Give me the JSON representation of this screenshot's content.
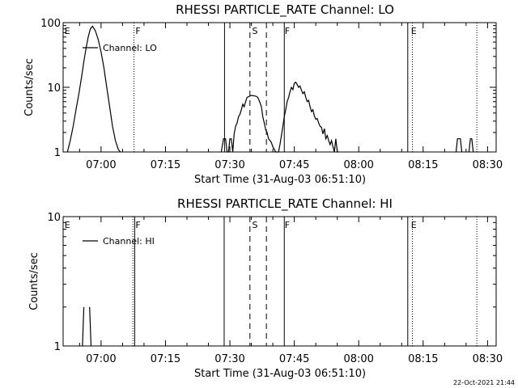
{
  "footer": {
    "timestamp": "22-Oct-2021 21:44"
  },
  "chart_data": [
    {
      "type": "line",
      "title": "RHESSI PARTICLE_RATE Channel: LO",
      "xlabel": "Start Time (31-Aug-03 06:51:10)",
      "ylabel": "Counts/sec",
      "yscale": "log",
      "xlim": [
        "06:51:10",
        "08:32:00"
      ],
      "ylim": [
        1,
        100
      ],
      "xticks": [
        "07:00",
        "07:15",
        "07:30",
        "07:45",
        "08:00",
        "08:15",
        "08:30"
      ],
      "yticks": [
        "1",
        "10",
        "100"
      ],
      "legend": {
        "position": "top-left",
        "entries": [
          "Channel: LO"
        ]
      },
      "region_labels": [
        {
          "label": "E",
          "time": "06:51:30"
        },
        {
          "label": "F",
          "time": "07:08:00"
        },
        {
          "label": "S",
          "time": "07:35:10"
        },
        {
          "label": "F",
          "time": "07:42:45"
        },
        {
          "label": "E",
          "time": "08:12:10"
        }
      ],
      "vlines": [
        {
          "time": "07:07:40",
          "style": "dotted"
        },
        {
          "time": "07:28:45",
          "style": "solid"
        },
        {
          "time": "07:34:40",
          "style": "dashed"
        },
        {
          "time": "07:38:30",
          "style": "dashed"
        },
        {
          "time": "07:42:40",
          "style": "solid"
        },
        {
          "time": "08:11:25",
          "style": "solid"
        },
        {
          "time": "08:12:30",
          "style": "dotted"
        },
        {
          "time": "08:27:30",
          "style": "dotted"
        }
      ],
      "series": [
        {
          "name": "Channel: LO",
          "x": [
            "06:52:10",
            "06:52:50",
            "06:53:30",
            "06:54:10",
            "06:54:50",
            "06:55:30",
            "06:56:00",
            "06:56:30",
            "06:57:00",
            "06:57:30",
            "06:58:00",
            "06:58:40",
            "06:59:20",
            "07:00:00",
            "07:00:40",
            "07:01:20",
            "07:02:00",
            "07:02:40",
            "07:03:20",
            "07:04:00",
            "07:04:30",
            "07:28:00",
            "07:28:30",
            "07:29:00",
            "07:29:20",
            "07:29:40",
            "07:30:00",
            "07:30:20",
            "07:30:40",
            "07:31:00",
            "07:31:20",
            "07:31:40",
            "07:32:00",
            "07:32:20",
            "07:32:40",
            "07:33:00",
            "07:33:20",
            "07:33:40",
            "07:34:00",
            "07:35:00",
            "07:36:00",
            "07:36:30",
            "07:37:00",
            "07:37:20",
            "07:37:40",
            "07:38:00",
            "07:38:20",
            "07:38:40",
            "07:39:00",
            "07:39:20",
            "07:39:40",
            "07:40:00",
            "07:40:20",
            "07:40:40",
            "07:41:20",
            "07:41:40",
            "07:42:00",
            "07:42:20",
            "07:42:40",
            "07:43:00",
            "07:43:20",
            "07:43:40",
            "07:44:00",
            "07:44:20",
            "07:44:40",
            "07:45:00",
            "07:45:20",
            "07:45:40",
            "07:46:00",
            "07:46:20",
            "07:46:40",
            "07:47:00",
            "07:47:20",
            "07:47:40",
            "07:48:00",
            "07:48:20",
            "07:48:40",
            "07:49:00",
            "07:49:20",
            "07:49:40",
            "07:50:00",
            "07:50:20",
            "07:50:40",
            "07:51:00",
            "07:51:20",
            "07:51:40",
            "07:52:00",
            "07:52:20",
            "07:52:40",
            "07:53:00",
            "07:53:20",
            "07:53:40",
            "07:54:00",
            "07:54:20",
            "07:54:40",
            "07:55:00",
            "07:55:20",
            "08:22:40",
            "08:23:00",
            "08:23:40",
            "08:24:00",
            "08:25:40",
            "08:26:00",
            "08:26:20",
            "08:26:40"
          ],
          "y": [
            1.0,
            1.5,
            2.5,
            4.5,
            8,
            15,
            25,
            40,
            60,
            80,
            88,
            75,
            55,
            35,
            20,
            10,
            5,
            2.5,
            1.5,
            1.1,
            1.0,
            1.0,
            1.6,
            1.6,
            1.0,
            1.0,
            1.6,
            1.6,
            1.0,
            1.9,
            2.5,
            2.8,
            3.5,
            3.8,
            4.5,
            5.5,
            5.0,
            6.0,
            7.0,
            7.5,
            7.3,
            7.0,
            5.8,
            5.0,
            3.5,
            2.8,
            2.2,
            2.0,
            1.6,
            1.5,
            1.4,
            1.2,
            1.1,
            1.0,
            1.0,
            1.3,
            1.8,
            2.5,
            3.5,
            4.5,
            6.0,
            7.0,
            8.5,
            10.0,
            9.2,
            11.5,
            12.0,
            11.0,
            10.0,
            10.5,
            9.0,
            8.0,
            8.5,
            7.0,
            6.0,
            6.3,
            5.0,
            4.2,
            4.5,
            3.6,
            3.2,
            3.3,
            2.8,
            2.5,
            2.4,
            1.9,
            2.3,
            1.6,
            1.8,
            1.5,
            1.3,
            1.5,
            1.2,
            1.0,
            1.6,
            1.0,
            1.0,
            1.0,
            1.6,
            1.6,
            1.0,
            1.0,
            1.6,
            1.6,
            1.0
          ]
        }
      ]
    },
    {
      "type": "line",
      "title": "RHESSI PARTICLE_RATE Channel: HI",
      "xlabel": "Start Time (31-Aug-03 06:51:10)",
      "ylabel": "Counts/sec",
      "yscale": "log",
      "xlim": [
        "06:51:10",
        "08:32:00"
      ],
      "ylim": [
        1,
        10
      ],
      "xticks": [
        "07:00",
        "07:15",
        "07:30",
        "07:45",
        "08:00",
        "08:15",
        "08:30"
      ],
      "yticks": [
        "1",
        "10"
      ],
      "legend": {
        "position": "top-left",
        "entries": [
          "Channel: HI"
        ]
      },
      "region_labels": [
        {
          "label": "E",
          "time": "06:51:30"
        },
        {
          "label": "F",
          "time": "07:08:00"
        },
        {
          "label": "S",
          "time": "07:35:10"
        },
        {
          "label": "F",
          "time": "07:42:45"
        },
        {
          "label": "E",
          "time": "08:12:10"
        }
      ],
      "vlines": [
        {
          "time": "07:07:25",
          "style": "dotted"
        },
        {
          "time": "07:07:50",
          "style": "solid"
        },
        {
          "time": "07:28:40",
          "style": "solid"
        },
        {
          "time": "07:34:40",
          "style": "dashed"
        },
        {
          "time": "07:38:30",
          "style": "dashed"
        },
        {
          "time": "07:42:40",
          "style": "solid"
        },
        {
          "time": "08:11:25",
          "style": "solid"
        },
        {
          "time": "08:12:30",
          "style": "dotted"
        },
        {
          "time": "08:27:30",
          "style": "dotted"
        }
      ],
      "series": [
        {
          "name": "Channel: HI",
          "x": [
            "06:55:40",
            "06:56:00",
            "06:57:20",
            "06:57:40"
          ],
          "y": [
            1.0,
            2.0,
            2.0,
            1.0
          ]
        }
      ]
    }
  ]
}
